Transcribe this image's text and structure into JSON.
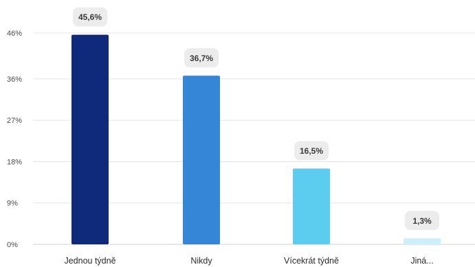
{
  "chart_data": {
    "type": "bar",
    "categories": [
      "Jednou týdně",
      "Nikdy",
      "Vícekrát týdně",
      "Jiná..."
    ],
    "values": [
      45.6,
      36.7,
      16.5,
      1.3
    ],
    "data_labels": [
      "45,6%",
      "36,7%",
      "16,5%",
      "1,3%"
    ],
    "colors": [
      "#0f2a7a",
      "#3586d6",
      "#5ccdee",
      "#cdeefb"
    ],
    "y_ticks": [
      0,
      9,
      18,
      27,
      36,
      46
    ],
    "y_tick_labels": [
      "0%",
      "9%",
      "18%",
      "27%",
      "36%",
      "46%"
    ],
    "ylim": [
      0,
      46
    ],
    "grid": true,
    "legend": "none",
    "title": "",
    "xlabel": "",
    "ylabel": ""
  }
}
